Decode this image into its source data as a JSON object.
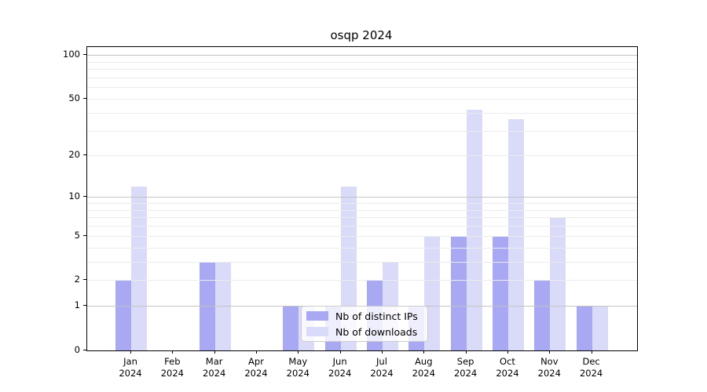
{
  "title": "osqp 2024",
  "legend": {
    "items": [
      {
        "label": "Nb of distinct IPs",
        "color": "#a8a8f3"
      },
      {
        "label": "Nb of downloads",
        "color": "#dadaf9"
      }
    ]
  },
  "chart_data": {
    "type": "bar",
    "title": "osqp 2024",
    "categories": [
      "Jan",
      "Feb",
      "Mar",
      "Apr",
      "May",
      "Jun",
      "Jul",
      "Aug",
      "Sep",
      "Oct",
      "Nov",
      "Dec"
    ],
    "category_year": "2024",
    "series": [
      {
        "name": "Nb of distinct IPs",
        "color": "#a8a8f3",
        "values": [
          2,
          0,
          3,
          0,
          1,
          1,
          2,
          1,
          5,
          5,
          2,
          1
        ]
      },
      {
        "name": "Nb of downloads",
        "color": "#dadaf9",
        "values": [
          12,
          0,
          3,
          0,
          1,
          12,
          3,
          5,
          42,
          36,
          7,
          1
        ]
      }
    ],
    "xlabel": "",
    "ylabel": "",
    "yscale": "log(1+v)",
    "ylim": [
      0,
      113
    ],
    "yticks": [
      0,
      1,
      2,
      5,
      10,
      20,
      50,
      100
    ],
    "major_gridlines": [
      1,
      10,
      100
    ],
    "minor_gridlines": [
      2,
      3,
      4,
      5,
      6,
      7,
      8,
      9,
      20,
      30,
      40,
      50,
      60,
      70,
      80,
      90
    ],
    "grid": "on, drawn above bars",
    "legend_position": "lower center"
  }
}
